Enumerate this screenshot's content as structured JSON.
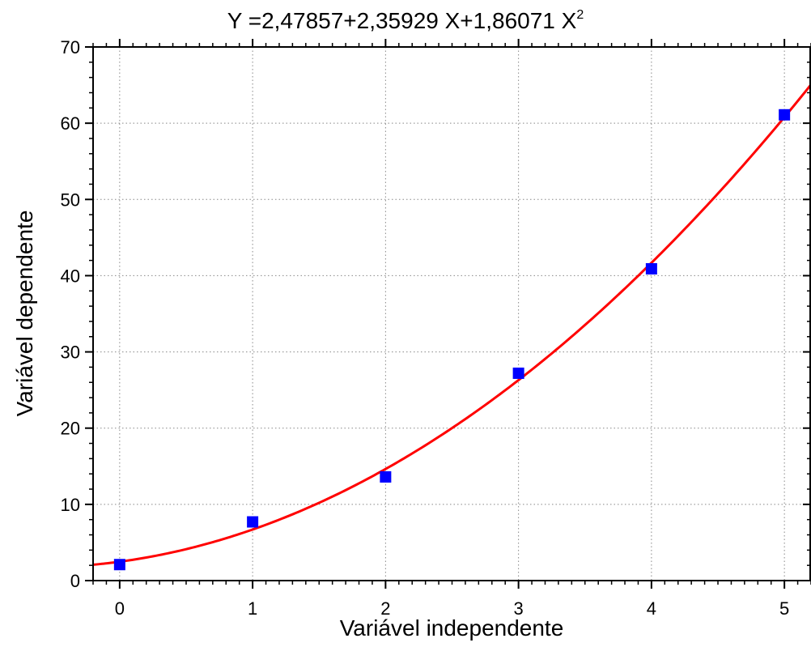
{
  "chart_data": {
    "type": "scatter",
    "title": {
      "prefix": "Y =2,47857+2,35929 X+1,86071 X",
      "superscript": "2"
    },
    "xlabel": "Variável independente",
    "ylabel": "Variável dependente",
    "xlim": [
      -0.2,
      5.2
    ],
    "ylim": [
      0,
      70
    ],
    "x_ticks": [
      0,
      1,
      2,
      3,
      4,
      5
    ],
    "y_ticks": [
      0,
      10,
      20,
      30,
      40,
      50,
      60,
      70
    ],
    "grid": true,
    "series": [
      {
        "kind": "points",
        "marker": "square",
        "color": "#0000ff",
        "x": [
          0,
          1,
          2,
          3,
          4,
          5
        ],
        "y": [
          2.1,
          7.7,
          13.6,
          27.2,
          40.9,
          61.1
        ]
      },
      {
        "kind": "fit-line",
        "color": "#ff0000",
        "coefficients": [
          2.47857,
          2.35929,
          1.86071
        ]
      }
    ]
  }
}
